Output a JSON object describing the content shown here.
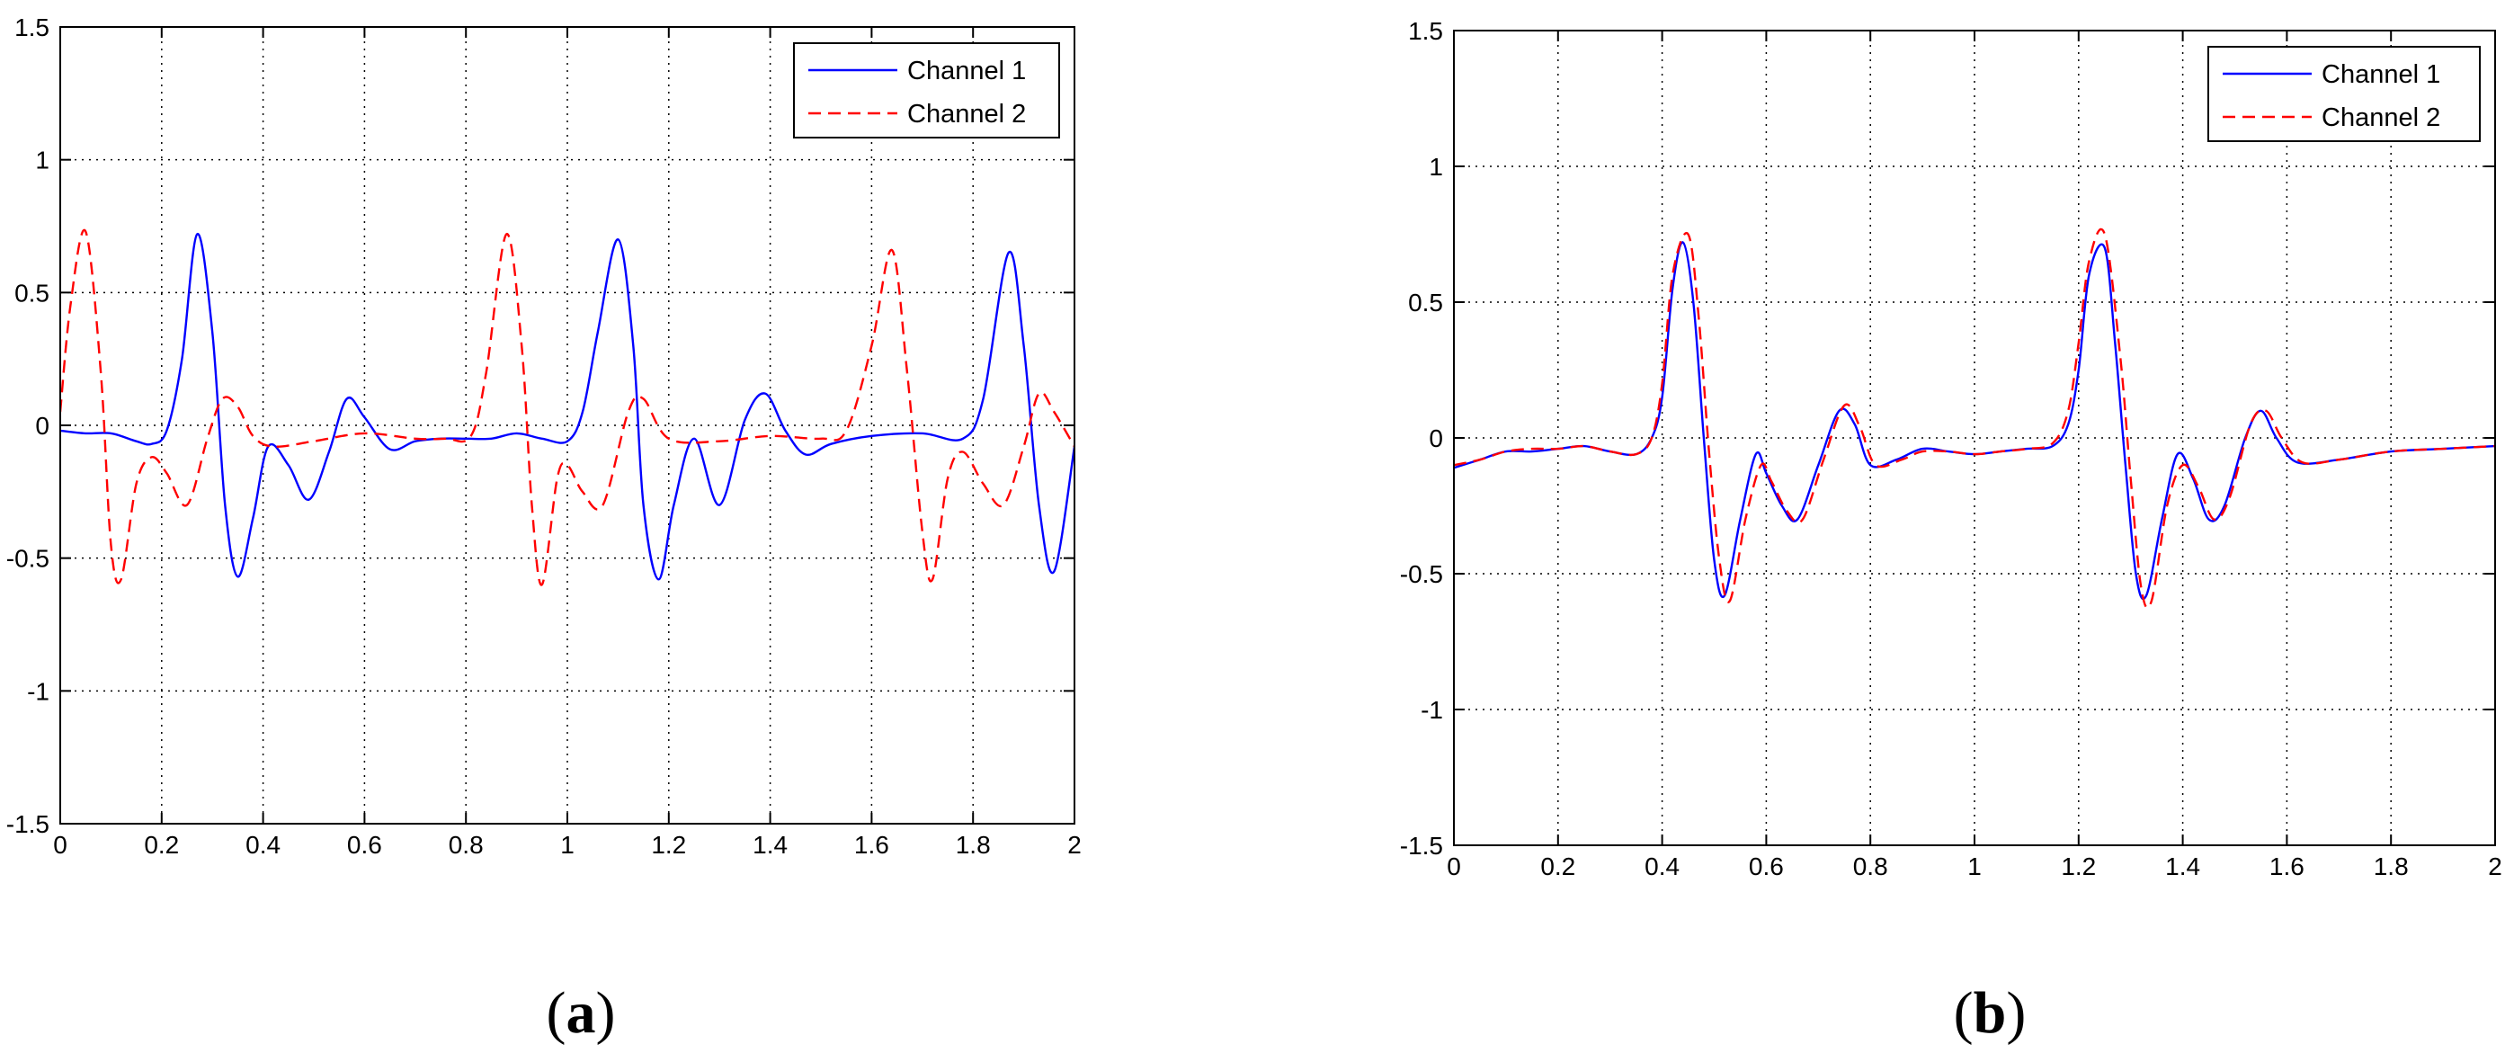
{
  "figure": {
    "panels": [
      {
        "label_open": "(",
        "label_letter": "a",
        "label_close": ")"
      },
      {
        "label_open": "(",
        "label_letter": "b",
        "label_close": ")"
      }
    ]
  },
  "chart_data": [
    {
      "type": "line",
      "title": "",
      "xlabel": "",
      "ylabel": "",
      "xlim": [
        0,
        2
      ],
      "ylim": [
        -1.5,
        1.5
      ],
      "xticks": [
        0,
        0.2,
        0.4,
        0.6,
        0.8,
        1,
        1.2,
        1.4,
        1.6,
        1.8,
        2
      ],
      "xtick_labels": [
        "0",
        "0.2",
        "0.4",
        "0.6",
        "0.8",
        "1",
        "1.2",
        "1.4",
        "1.6",
        "1.8",
        "2"
      ],
      "yticks": [
        -1.5,
        -1,
        -0.5,
        0,
        0.5,
        1,
        1.5
      ],
      "ytick_labels": [
        "-1.5",
        "-1",
        "-0.5",
        "0",
        "0.5",
        "1",
        "1.5"
      ],
      "grid": true,
      "legend_position": "top-right",
      "series": [
        {
          "name": "Channel 1",
          "color": "#0000ff",
          "style": "solid",
          "x": [
            0,
            0.05,
            0.1,
            0.15,
            0.18,
            0.21,
            0.24,
            0.27,
            0.3,
            0.325,
            0.35,
            0.38,
            0.41,
            0.45,
            0.49,
            0.53,
            0.565,
            0.6,
            0.65,
            0.7,
            0.75,
            0.8,
            0.85,
            0.9,
            0.95,
            1.0,
            1.03,
            1.06,
            1.1,
            1.13,
            1.15,
            1.18,
            1.21,
            1.25,
            1.3,
            1.35,
            1.39,
            1.43,
            1.47,
            1.52,
            1.6,
            1.7,
            1.78,
            1.82,
            1.87,
            1.9,
            1.93,
            1.96,
            2.0
          ],
          "y": [
            -0.02,
            -0.03,
            -0.03,
            -0.06,
            -0.07,
            -0.02,
            0.25,
            0.72,
            0.35,
            -0.3,
            -0.57,
            -0.35,
            -0.08,
            -0.15,
            -0.28,
            -0.1,
            0.1,
            0.03,
            -0.09,
            -0.06,
            -0.05,
            -0.05,
            -0.05,
            -0.03,
            -0.05,
            -0.06,
            0.05,
            0.35,
            0.7,
            0.3,
            -0.3,
            -0.58,
            -0.3,
            -0.05,
            -0.3,
            0.02,
            0.12,
            -0.02,
            -0.11,
            -0.07,
            -0.04,
            -0.03,
            -0.05,
            0.1,
            0.65,
            0.3,
            -0.3,
            -0.55,
            -0.08
          ]
        },
        {
          "name": "Channel 2",
          "color": "#ff0000",
          "style": "dashed",
          "x": [
            0,
            0.02,
            0.05,
            0.08,
            0.1,
            0.12,
            0.15,
            0.18,
            0.21,
            0.25,
            0.29,
            0.32,
            0.35,
            0.38,
            0.42,
            0.5,
            0.6,
            0.7,
            0.76,
            0.81,
            0.84,
            0.88,
            0.91,
            0.93,
            0.95,
            0.98,
            1.0,
            1.03,
            1.07,
            1.12,
            1.15,
            1.2,
            1.3,
            1.4,
            1.5,
            1.55,
            1.6,
            1.64,
            1.67,
            1.7,
            1.72,
            1.75,
            1.78,
            1.82,
            1.86,
            1.9,
            1.93,
            1.96,
            2.0
          ],
          "y": [
            0.05,
            0.45,
            0.73,
            0.2,
            -0.45,
            -0.58,
            -0.22,
            -0.12,
            -0.18,
            -0.3,
            -0.05,
            0.1,
            0.07,
            -0.04,
            -0.08,
            -0.06,
            -0.03,
            -0.05,
            -0.05,
            -0.04,
            0.2,
            0.72,
            0.3,
            -0.3,
            -0.6,
            -0.2,
            -0.15,
            -0.25,
            -0.3,
            0.05,
            0.1,
            -0.05,
            -0.06,
            -0.04,
            -0.05,
            -0.02,
            0.3,
            0.66,
            0.2,
            -0.4,
            -0.58,
            -0.2,
            -0.1,
            -0.22,
            -0.3,
            -0.08,
            0.12,
            0.05,
            -0.08
          ]
        }
      ]
    },
    {
      "type": "line",
      "title": "",
      "xlabel": "",
      "ylabel": "",
      "xlim": [
        0,
        2
      ],
      "ylim": [
        -1.5,
        1.5
      ],
      "xticks": [
        0,
        0.2,
        0.4,
        0.6,
        0.8,
        1,
        1.2,
        1.4,
        1.6,
        1.8,
        2
      ],
      "xtick_labels": [
        "0",
        "0.2",
        "0.4",
        "0.6",
        "0.8",
        "1",
        "1.2",
        "1.4",
        "1.6",
        "1.8",
        "2"
      ],
      "yticks": [
        -1.5,
        -1,
        -0.5,
        0,
        0.5,
        1,
        1.5
      ],
      "ytick_labels": [
        "-1.5",
        "-1",
        "-0.5",
        "0",
        "0.5",
        "1",
        "1.5"
      ],
      "grid": true,
      "legend_position": "top-right",
      "series": [
        {
          "name": "Channel 1",
          "color": "#0000ff",
          "style": "solid",
          "x": [
            0,
            0.05,
            0.1,
            0.15,
            0.2,
            0.25,
            0.3,
            0.35,
            0.38,
            0.4,
            0.42,
            0.44,
            0.46,
            0.48,
            0.5,
            0.52,
            0.55,
            0.58,
            0.6,
            0.63,
            0.66,
            0.7,
            0.74,
            0.77,
            0.8,
            0.85,
            0.9,
            0.95,
            1.0,
            1.05,
            1.1,
            1.15,
            1.18,
            1.2,
            1.22,
            1.25,
            1.27,
            1.29,
            1.31,
            1.33,
            1.36,
            1.39,
            1.42,
            1.45,
            1.48,
            1.52,
            1.55,
            1.58,
            1.62,
            1.7,
            1.8,
            1.9,
            2.0
          ],
          "y": [
            -0.11,
            -0.08,
            -0.05,
            -0.05,
            -0.04,
            -0.03,
            -0.05,
            -0.06,
            0.0,
            0.15,
            0.55,
            0.72,
            0.5,
            0.0,
            -0.45,
            -0.58,
            -0.3,
            -0.06,
            -0.13,
            -0.25,
            -0.3,
            -0.1,
            0.1,
            0.05,
            -0.1,
            -0.08,
            -0.04,
            -0.05,
            -0.06,
            -0.05,
            -0.04,
            -0.03,
            0.05,
            0.25,
            0.6,
            0.7,
            0.35,
            -0.1,
            -0.5,
            -0.58,
            -0.3,
            -0.06,
            -0.15,
            -0.3,
            -0.25,
            0.0,
            0.1,
            0.0,
            -0.09,
            -0.08,
            -0.05,
            -0.04,
            -0.03
          ]
        },
        {
          "name": "Channel 2",
          "color": "#ff0000",
          "style": "dashed",
          "x": [
            0,
            0.05,
            0.1,
            0.15,
            0.2,
            0.25,
            0.3,
            0.35,
            0.38,
            0.4,
            0.42,
            0.45,
            0.47,
            0.49,
            0.51,
            0.53,
            0.56,
            0.59,
            0.61,
            0.64,
            0.67,
            0.71,
            0.75,
            0.78,
            0.81,
            0.86,
            0.9,
            0.95,
            1.0,
            1.05,
            1.1,
            1.15,
            1.18,
            1.2,
            1.22,
            1.25,
            1.28,
            1.3,
            1.32,
            1.34,
            1.37,
            1.4,
            1.43,
            1.46,
            1.49,
            1.53,
            1.56,
            1.59,
            1.63,
            1.7,
            1.8,
            1.9,
            2.0
          ],
          "y": [
            -0.1,
            -0.08,
            -0.05,
            -0.04,
            -0.04,
            -0.03,
            -0.05,
            -0.06,
            0.0,
            0.2,
            0.6,
            0.75,
            0.45,
            -0.05,
            -0.45,
            -0.6,
            -0.3,
            -0.1,
            -0.16,
            -0.27,
            -0.3,
            -0.08,
            0.12,
            0.04,
            -0.1,
            -0.08,
            -0.05,
            -0.05,
            -0.06,
            -0.05,
            -0.04,
            -0.02,
            0.1,
            0.35,
            0.65,
            0.75,
            0.3,
            -0.15,
            -0.55,
            -0.6,
            -0.25,
            -0.1,
            -0.18,
            -0.3,
            -0.22,
            0.05,
            0.1,
            0.0,
            -0.09,
            -0.08,
            -0.05,
            -0.04,
            -0.03
          ]
        }
      ]
    }
  ]
}
